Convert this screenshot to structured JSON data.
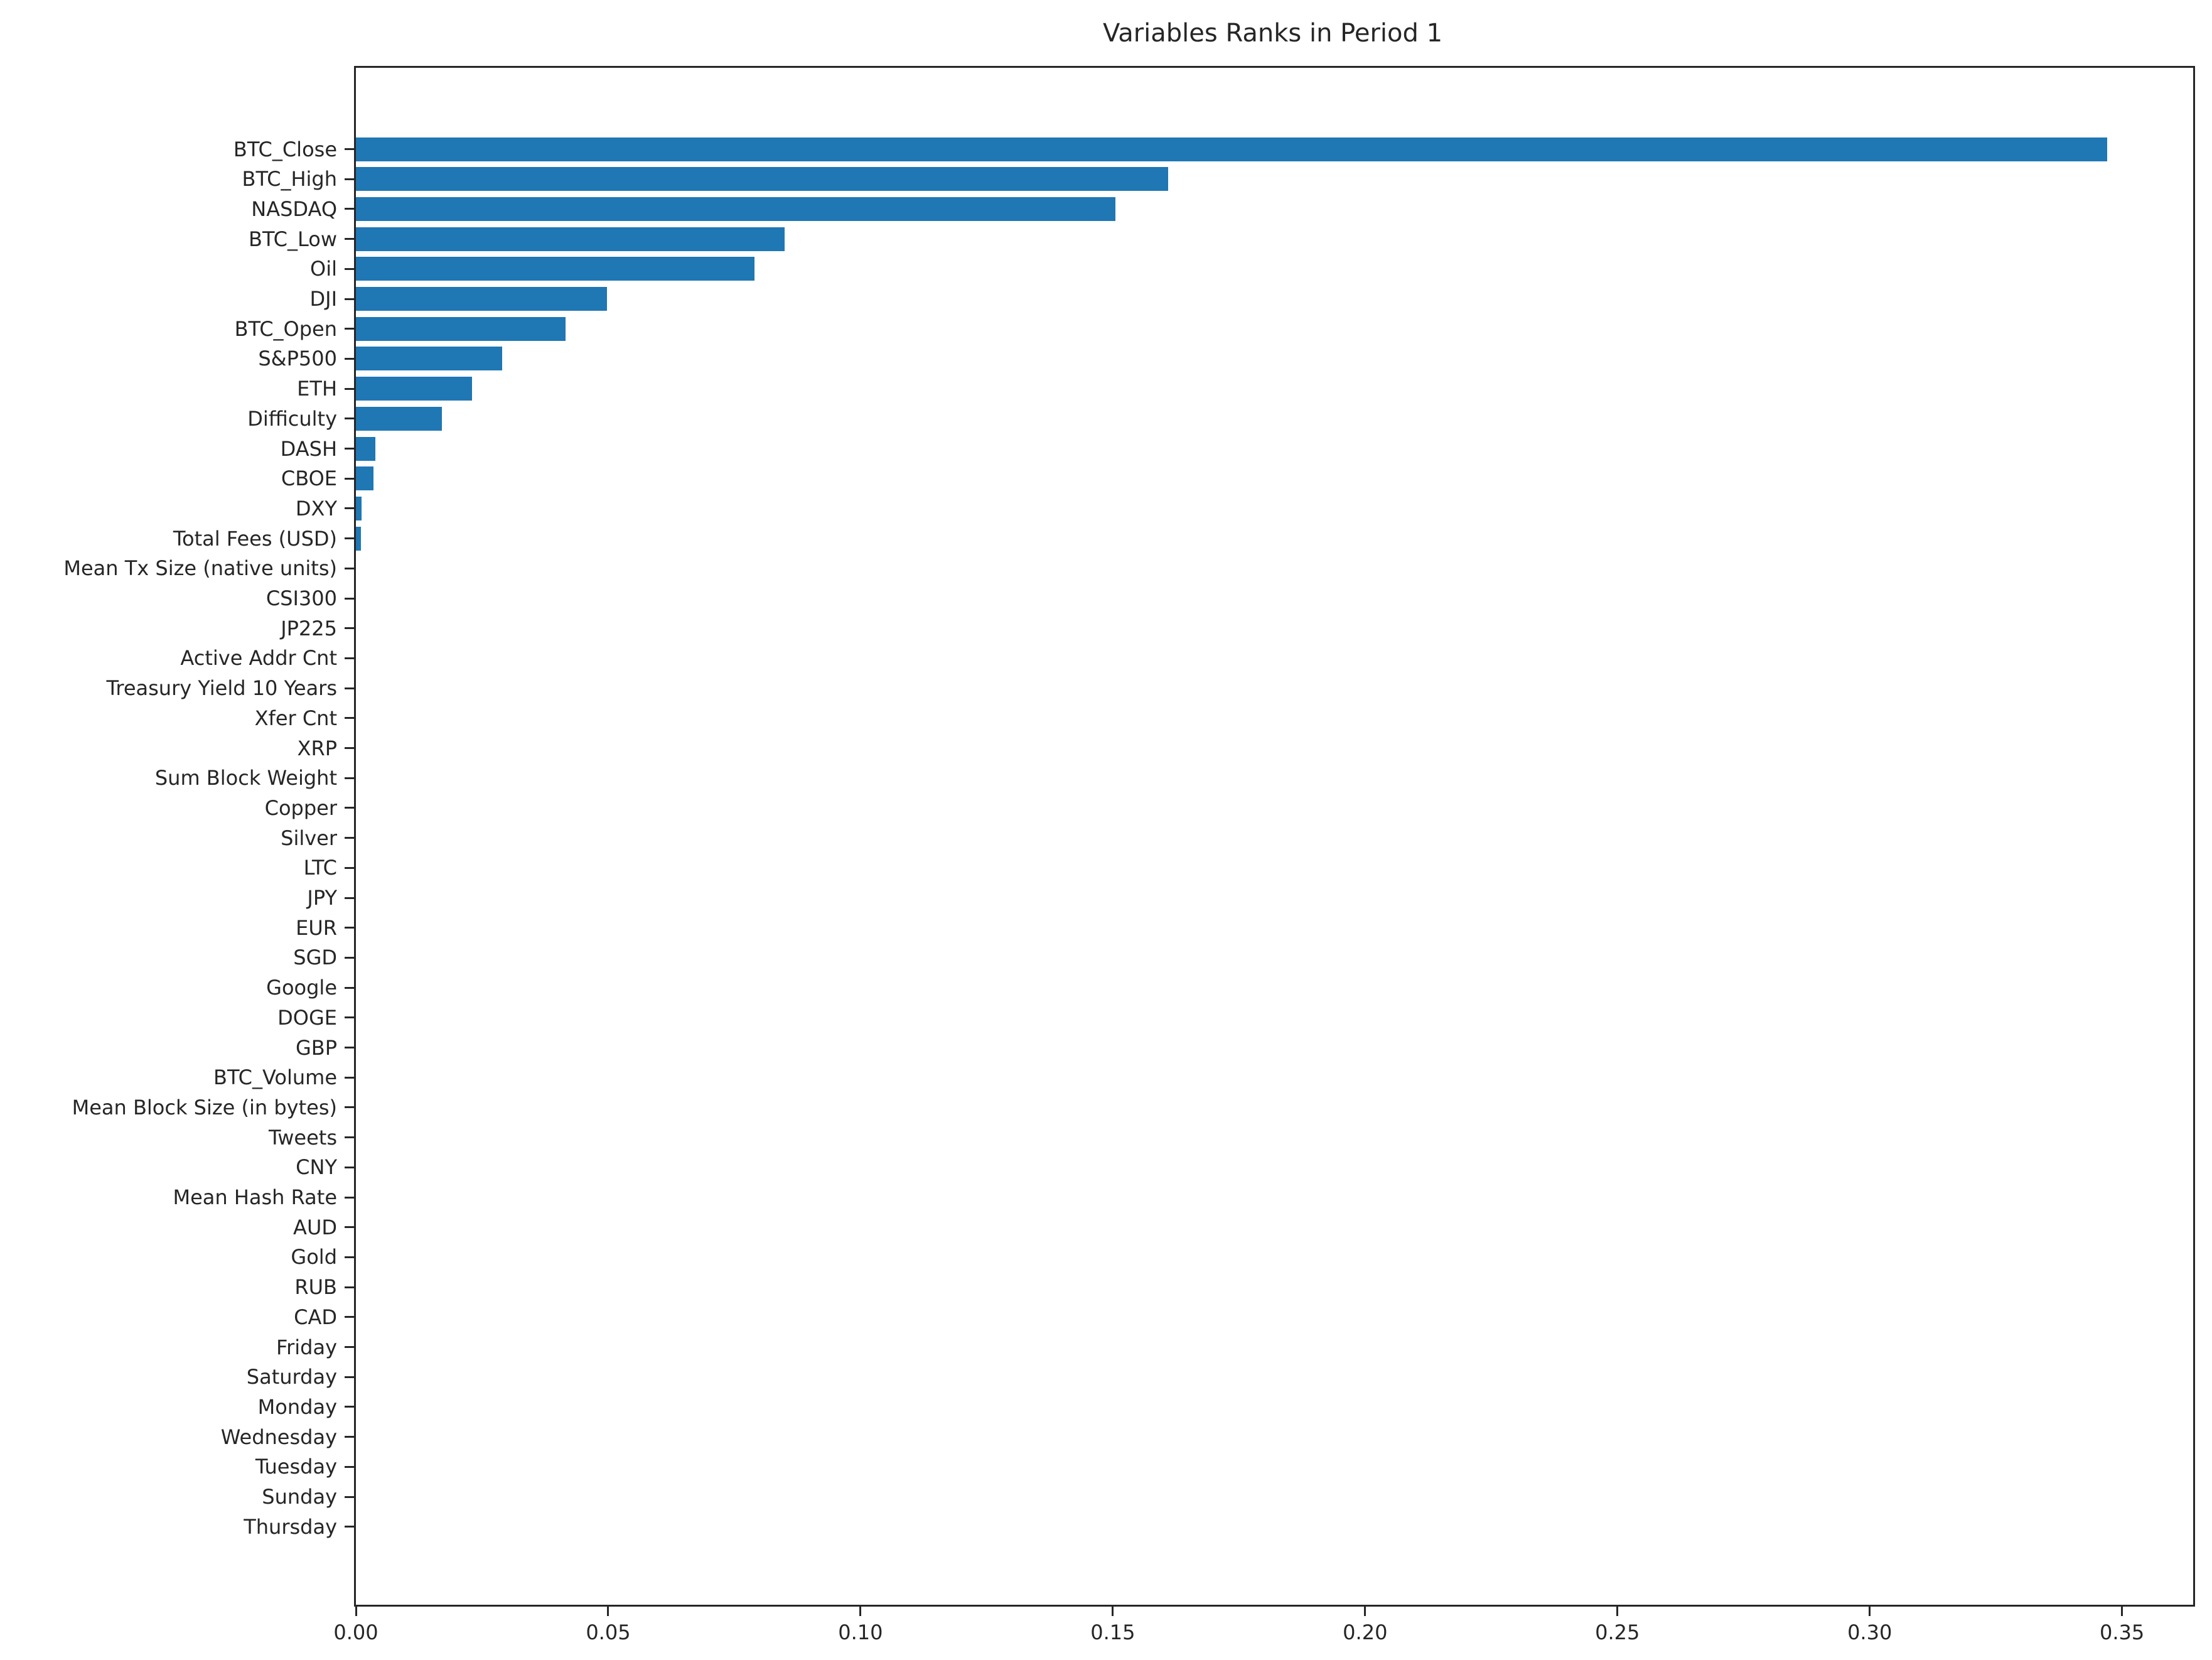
{
  "chart_data": {
    "type": "bar",
    "orientation": "horizontal",
    "title": "Variables Ranks in Period 1",
    "xlabel": "",
    "ylabel": "",
    "categories": [
      "BTC_Close",
      "BTC_High",
      "NASDAQ",
      "BTC_Low",
      "Oil",
      "DJI",
      "BTC_Open",
      "S&P500",
      "ETH",
      "Difficulty",
      "DASH",
      "CBOE",
      "DXY",
      "Total Fees (USD)",
      "Mean Tx Size (native units)",
      "CSI300",
      "JP225",
      "Active Addr Cnt",
      "Treasury Yield 10 Years",
      "Xfer Cnt",
      "XRP",
      "Sum Block Weight",
      "Copper",
      "Silver",
      "LTC",
      "JPY",
      "EUR",
      "SGD",
      "Google",
      "DOGE",
      "GBP",
      "BTC_Volume",
      "Mean Block Size (in bytes)",
      "Tweets",
      "CNY",
      "Mean Hash Rate",
      "AUD",
      "Gold",
      "RUB",
      "CAD",
      "Friday",
      "Saturday",
      "Monday",
      "Wednesday",
      "Tuesday",
      "Sunday",
      "Thursday"
    ],
    "values": [
      0.347,
      0.161,
      0.1505,
      0.085,
      0.079,
      0.0498,
      0.0415,
      0.029,
      0.023,
      0.017,
      0.0039,
      0.0035,
      0.0011,
      0.001,
      0,
      0,
      0,
      0,
      0,
      0,
      0,
      0,
      0,
      0,
      0,
      0,
      0,
      0,
      0,
      0,
      0,
      0,
      0,
      0,
      0,
      0,
      0,
      0,
      0,
      0,
      0,
      0,
      0,
      0,
      0,
      0,
      0
    ],
    "xlim": [
      0,
      0.3641
    ],
    "xtick_labels": [
      "0.00",
      "0.05",
      "0.10",
      "0.15",
      "0.20",
      "0.25",
      "0.30",
      "0.35"
    ],
    "xtick_values": [
      0.0,
      0.05,
      0.1,
      0.15,
      0.2,
      0.25,
      0.3,
      0.35
    ],
    "grid": false,
    "legend": "none",
    "bar_color": "#1f77b4",
    "axis_color": "#262626",
    "background_color": "#ffffff"
  }
}
